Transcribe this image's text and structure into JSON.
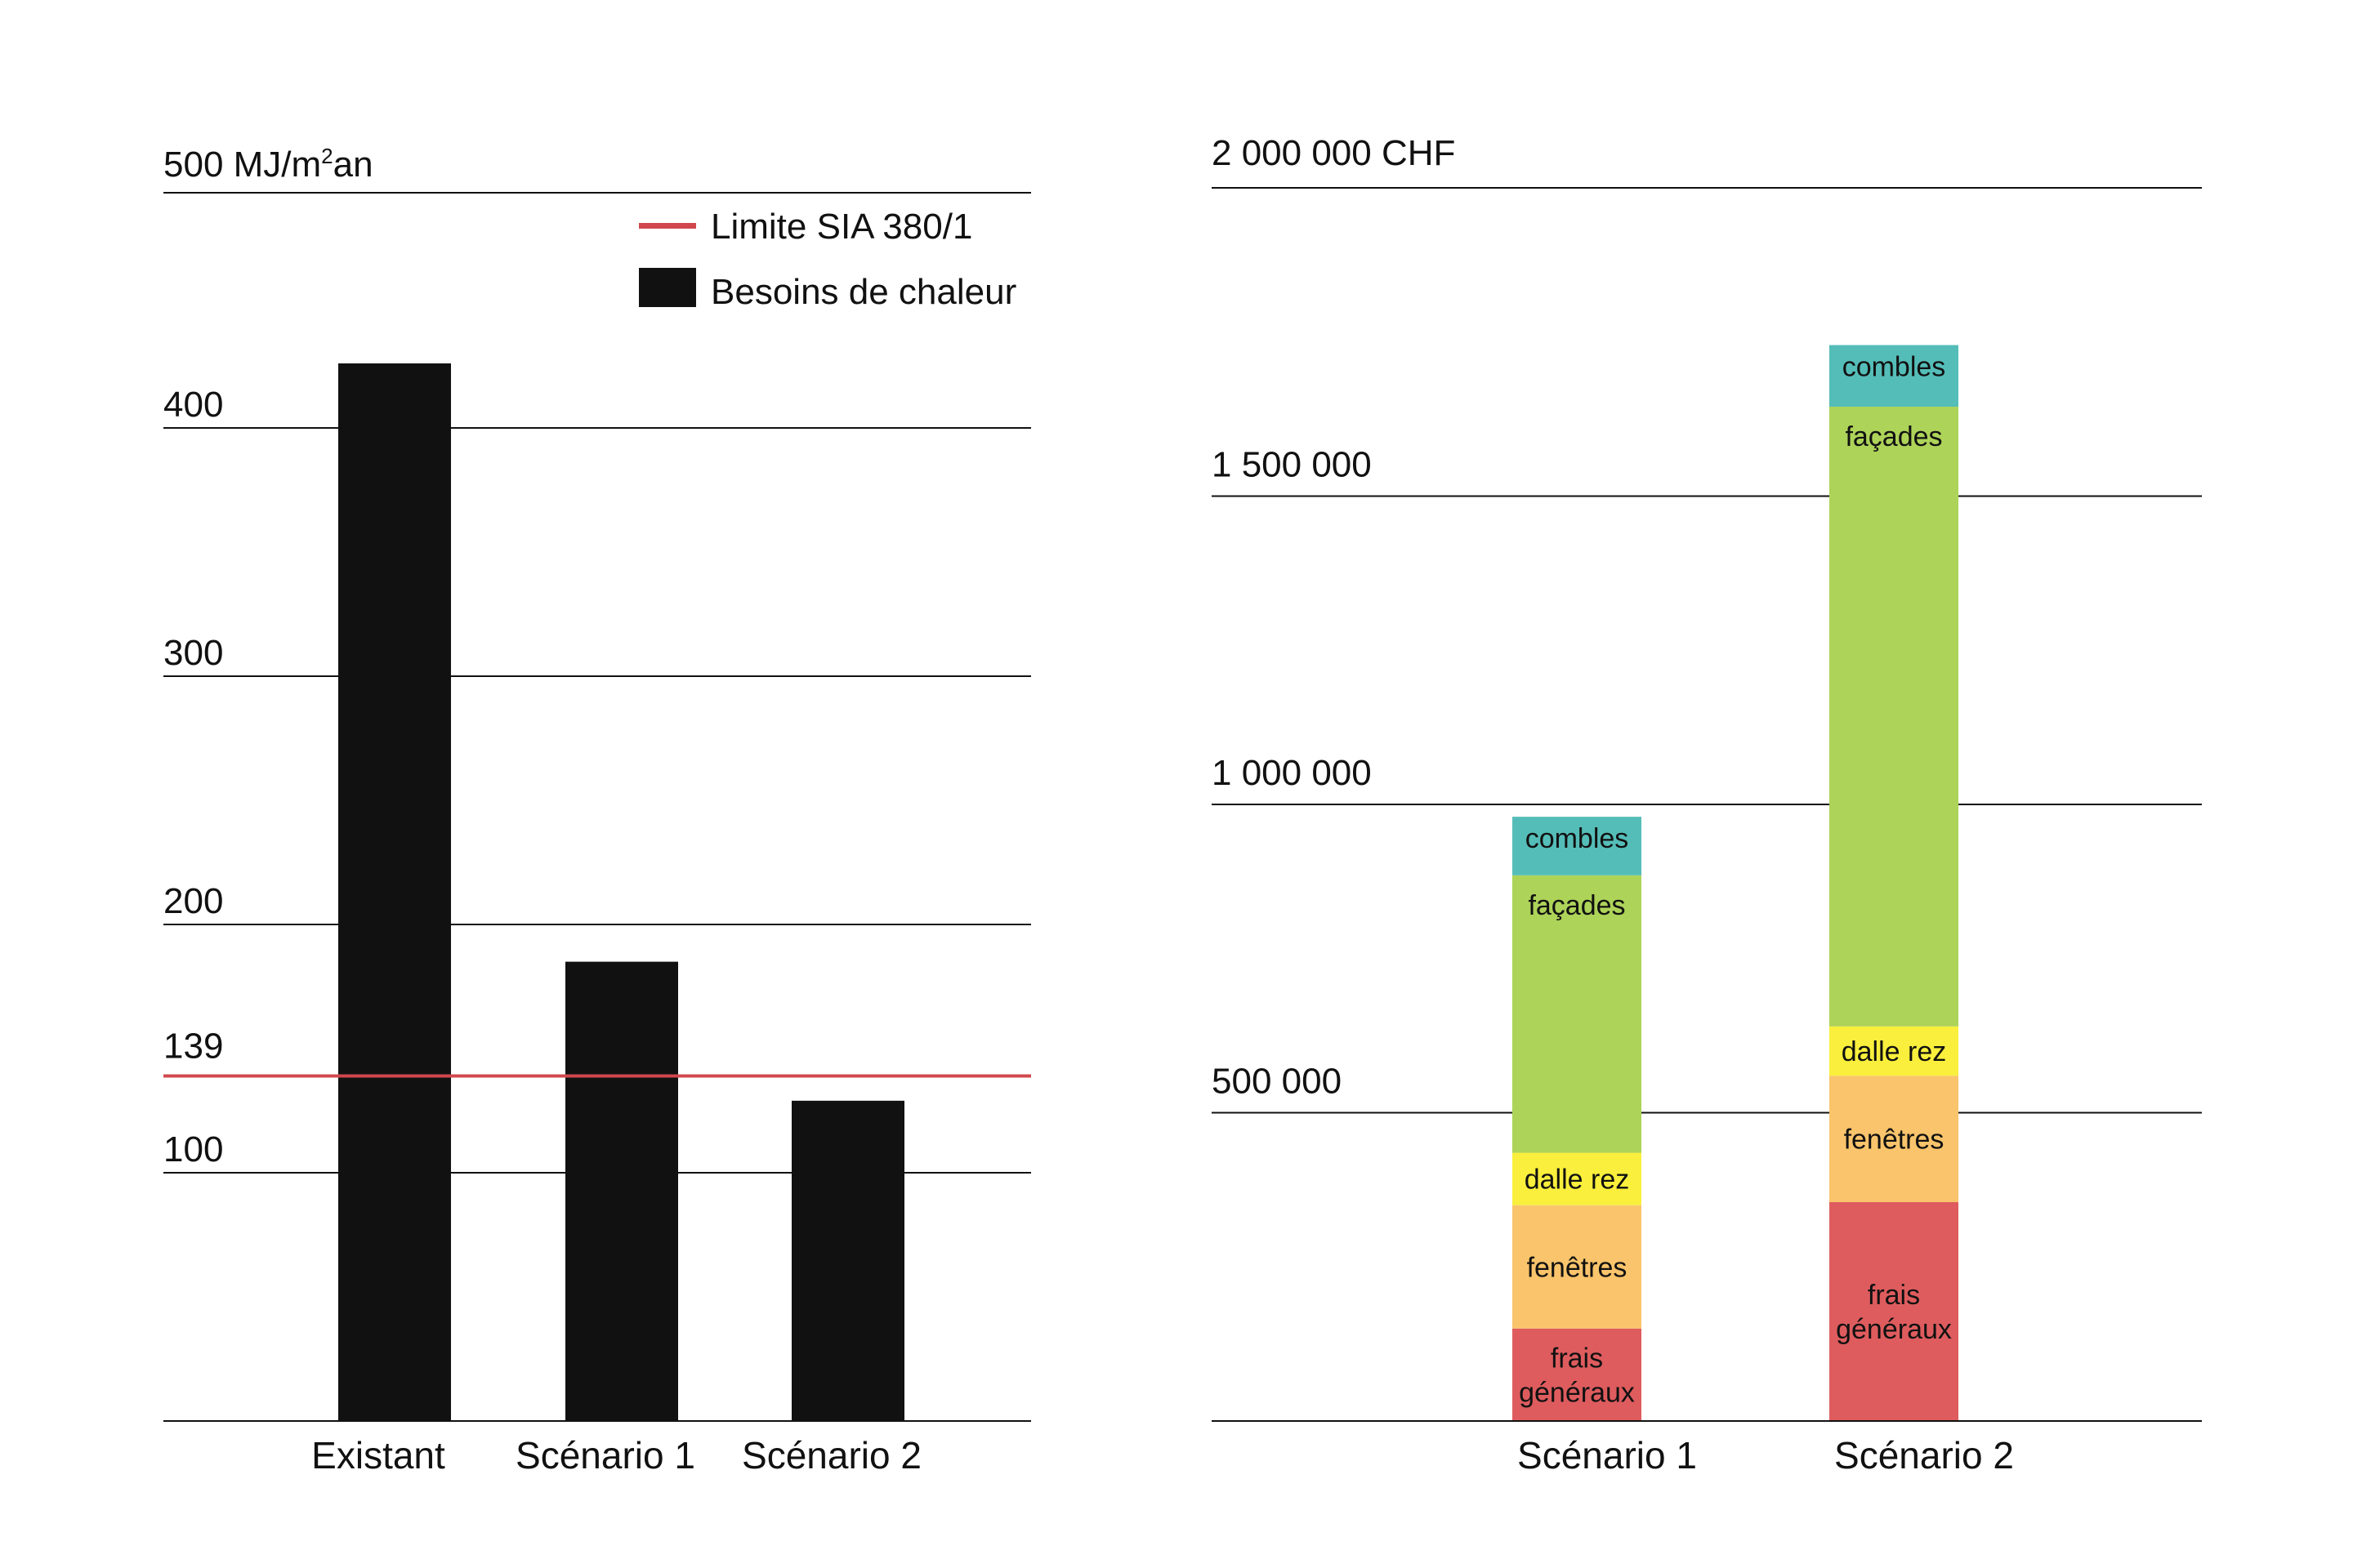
{
  "chart_data": [
    {
      "type": "bar",
      "title": "",
      "ylabel": "MJ/m²an",
      "top_tick_label": "500 MJ/m²an",
      "y_tick_labels": [
        "100",
        "200",
        "300",
        "400"
      ],
      "ylim": [
        0,
        500
      ],
      "categories": [
        "Existant",
        "Scénario 1",
        "Scénario 2"
      ],
      "series": [
        {
          "name": "Besoins de chaleur",
          "values": [
            426,
            185,
            129
          ],
          "color": "#111111"
        }
      ],
      "reference_line": {
        "name": "Limite SIA 380/1",
        "value": 139,
        "label": "139",
        "color": "#d0484d"
      },
      "legend": [
        "Limite SIA 380/1",
        "Besoins de chaleur"
      ],
      "legend_position": "top-right",
      "grid": true
    },
    {
      "type": "bar",
      "stacked": true,
      "title": "",
      "ylabel": "CHF",
      "top_tick_label": "2 000 000 CHF",
      "y_tick_labels": [
        "500 000",
        "1 000 000",
        "1 500 000"
      ],
      "ylim": [
        0,
        2000000
      ],
      "categories": [
        "Scénario 1",
        "Scénario 2"
      ],
      "series": [
        {
          "name": "frais généraux",
          "lines": [
            "frais",
            "généraux"
          ],
          "color": "#de5c5e",
          "values": [
            150000,
            355000
          ]
        },
        {
          "name": "fenêtres",
          "lines": [
            "fenêtres"
          ],
          "color": "#f9c46b",
          "values": [
            200000,
            205000
          ]
        },
        {
          "name": "dalle rez",
          "lines": [
            "dalle rez"
          ],
          "color": "#f9ef3c",
          "values": [
            85000,
            80000
          ]
        },
        {
          "name": "façades",
          "lines": [
            "façades"
          ],
          "color": "#add359",
          "values": [
            450000,
            1005000
          ]
        },
        {
          "name": "combles",
          "lines": [
            "combles"
          ],
          "color": "#55bdb8",
          "values": [
            95000,
            100000
          ]
        }
      ],
      "grid": true
    }
  ]
}
